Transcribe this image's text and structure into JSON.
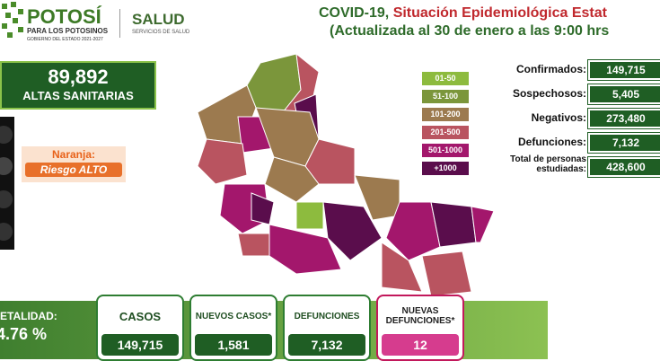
{
  "header": {
    "logo": {
      "name": "POTOSÍ",
      "tagline": "PARA LOS POTOSINOS",
      "government": "GOBIERNO DEL ESTADO 2021-2027"
    },
    "health": {
      "name": "SALUD",
      "subtitle": "SERVICIOS DE SALUD"
    },
    "title": {
      "prefix": "COVID-19, ",
      "main": "Situación Epidemiológica Estat"
    },
    "subtitle": "(Actualizada al 30 de enero a las 9:00 hrs"
  },
  "recovered": {
    "value": "89,892",
    "label": "ALTAS SANITARIAS"
  },
  "risk": {
    "color": "Naranja:",
    "level": "Riesgo ALTO"
  },
  "legend": [
    {
      "label": "01-50",
      "color": "#8dbb3e"
    },
    {
      "label": "51-100",
      "color": "#7b963b"
    },
    {
      "label": "101-200",
      "color": "#9c7a4f"
    },
    {
      "label": "201-500",
      "color": "#b95460"
    },
    {
      "label": "501-1000",
      "color": "#a3176c"
    },
    {
      "label": "+1000",
      "color": "#5a0d4c"
    }
  ],
  "stats": [
    {
      "label": "Confirmados:",
      "value": "149,715"
    },
    {
      "label": "Sospechosos:",
      "value": "5,405"
    },
    {
      "label": "Negativos:",
      "value": "273,480"
    },
    {
      "label": "Defunciones:",
      "value": "7,132"
    },
    {
      "label": "Total de personas estudiadas:",
      "value": "428,600"
    }
  ],
  "lethality": {
    "label": "ETALIDAD:",
    "value": "4.76 %"
  },
  "cards": [
    {
      "label": "CASOS",
      "value": "149,715"
    },
    {
      "label": "NUEVOS CASOS*",
      "value": "1,581"
    },
    {
      "label": "DEFUNCIONES",
      "value": "7,132"
    },
    {
      "label": "NUEVAS DEFUNCIONES*",
      "value": "12"
    }
  ]
}
